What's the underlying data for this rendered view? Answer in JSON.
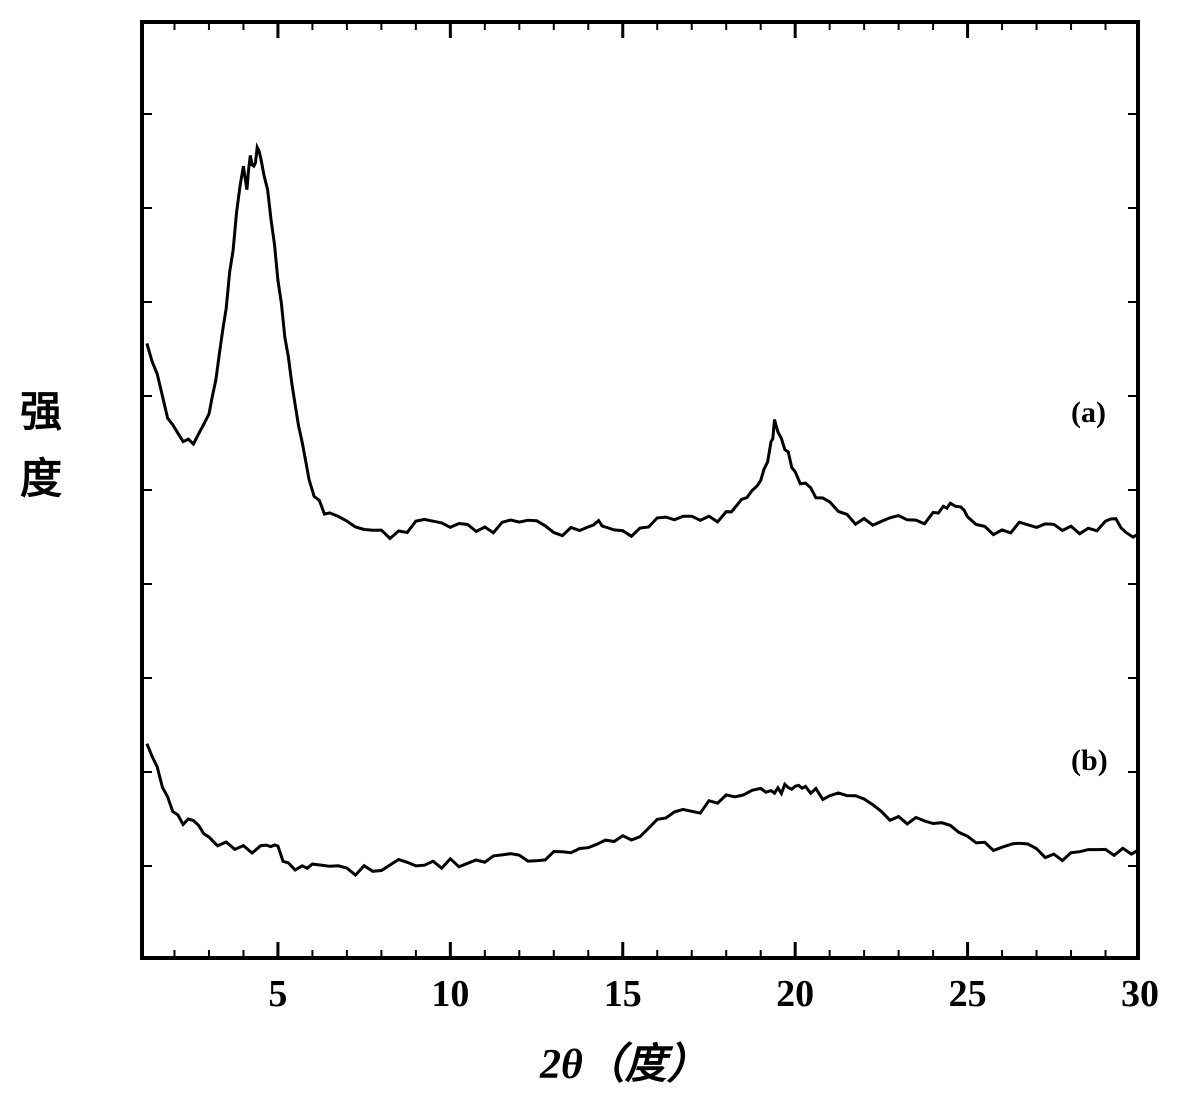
{
  "chart": {
    "type": "line",
    "xlabel": "2θ（度）",
    "ylabel_char1": "强",
    "ylabel_char2": "度",
    "xlim": [
      1,
      30
    ],
    "ylim": [
      0,
      100
    ],
    "xtick_major": [
      5,
      10,
      15,
      20,
      25,
      30
    ],
    "xtick_minor_count": 4,
    "ytick_major_count": 10,
    "background_color": "#ffffff",
    "axis_color": "#000000",
    "line_color": "#000000",
    "line_width": 3,
    "axis_width": 4,
    "label_fontsize": 42,
    "tick_fontsize": 38,
    "series_label_fontsize": 30,
    "series": [
      {
        "label": "(a)",
        "label_x": 28,
        "label_y": 60,
        "data": [
          [
            1.2,
            66
          ],
          [
            1.5,
            62
          ],
          [
            1.8,
            58
          ],
          [
            2.1,
            56
          ],
          [
            2.4,
            55.5
          ],
          [
            2.7,
            56
          ],
          [
            3.0,
            58
          ],
          [
            3.2,
            62
          ],
          [
            3.4,
            68
          ],
          [
            3.6,
            74
          ],
          [
            3.8,
            80
          ],
          [
            4.0,
            85
          ],
          [
            4.1,
            83
          ],
          [
            4.2,
            86
          ],
          [
            4.3,
            85
          ],
          [
            4.4,
            86.5
          ],
          [
            4.5,
            85
          ],
          [
            4.7,
            82
          ],
          [
            4.9,
            76
          ],
          [
            5.1,
            70
          ],
          [
            5.3,
            64
          ],
          [
            5.5,
            59
          ],
          [
            5.7,
            55
          ],
          [
            5.9,
            52
          ],
          [
            6.2,
            50
          ],
          [
            6.5,
            48.5
          ],
          [
            7.0,
            47.5
          ],
          [
            7.5,
            47
          ],
          [
            8.0,
            46.8
          ],
          [
            8.5,
            46.5
          ],
          [
            9.0,
            46.3
          ],
          [
            9.5,
            46.5
          ],
          [
            10.0,
            46.2
          ],
          [
            10.5,
            46.4
          ],
          [
            11.0,
            46.3
          ],
          [
            11.5,
            46.5
          ],
          [
            12.0,
            46.2
          ],
          [
            12.5,
            46.4
          ],
          [
            13.0,
            46.3
          ],
          [
            13.5,
            46.6
          ],
          [
            14.0,
            46.8
          ],
          [
            14.3,
            47.2
          ],
          [
            14.5,
            46.9
          ],
          [
            15.0,
            46.7
          ],
          [
            15.5,
            46.6
          ],
          [
            16.0,
            46.8
          ],
          [
            16.5,
            47.0
          ],
          [
            17.0,
            47.2
          ],
          [
            17.5,
            47.5
          ],
          [
            18.0,
            48
          ],
          [
            18.3,
            48.5
          ],
          [
            18.6,
            49.5
          ],
          [
            18.9,
            51
          ],
          [
            19.1,
            53
          ],
          [
            19.3,
            56
          ],
          [
            19.4,
            58
          ],
          [
            19.5,
            57
          ],
          [
            19.6,
            56.5
          ],
          [
            19.8,
            55
          ],
          [
            20.0,
            53
          ],
          [
            20.3,
            51
          ],
          [
            20.6,
            49.5
          ],
          [
            21.0,
            48.5
          ],
          [
            21.5,
            47.8
          ],
          [
            22.0,
            47.3
          ],
          [
            22.5,
            47
          ],
          [
            23.0,
            47.2
          ],
          [
            23.5,
            47.8
          ],
          [
            24.0,
            48.5
          ],
          [
            24.3,
            49.2
          ],
          [
            24.5,
            49.5
          ],
          [
            24.8,
            49
          ],
          [
            25.0,
            48.2
          ],
          [
            25.5,
            47.3
          ],
          [
            26.0,
            46.8
          ],
          [
            26.5,
            46.5
          ],
          [
            27.0,
            46.3
          ],
          [
            27.5,
            46.2
          ],
          [
            28.0,
            46.4
          ],
          [
            28.5,
            46.3
          ],
          [
            29.0,
            46.5
          ],
          [
            29.3,
            47
          ],
          [
            29.6,
            46.6
          ],
          [
            30.0,
            46.4
          ]
        ]
      },
      {
        "label": "(b)",
        "label_x": 28,
        "label_y": 23,
        "data": [
          [
            1.2,
            24
          ],
          [
            1.5,
            21
          ],
          [
            1.8,
            18.5
          ],
          [
            2.1,
            16.5
          ],
          [
            2.4,
            15
          ],
          [
            2.7,
            14
          ],
          [
            3.0,
            13.2
          ],
          [
            3.5,
            12.5
          ],
          [
            4.0,
            12
          ],
          [
            4.5,
            11.8
          ],
          [
            4.8,
            12.3
          ],
          [
            5.0,
            12
          ],
          [
            5.3,
            11.5
          ],
          [
            5.7,
            11.2
          ],
          [
            6.0,
            11
          ],
          [
            6.5,
            10.8
          ],
          [
            7.0,
            10.6
          ],
          [
            7.5,
            10.5
          ],
          [
            8.0,
            10.4
          ],
          [
            8.5,
            10.3
          ],
          [
            9.0,
            10.2
          ],
          [
            9.5,
            10.3
          ],
          [
            10.0,
            10.4
          ],
          [
            10.5,
            10.6
          ],
          [
            11.0,
            10.8
          ],
          [
            11.5,
            11
          ],
          [
            12.0,
            11.3
          ],
          [
            12.5,
            11.6
          ],
          [
            13.0,
            12
          ],
          [
            13.5,
            12.4
          ],
          [
            14.0,
            12.8
          ],
          [
            14.5,
            13.3
          ],
          [
            15.0,
            13.8
          ],
          [
            15.5,
            14.3
          ],
          [
            16.0,
            14.9
          ],
          [
            16.5,
            15.5
          ],
          [
            17.0,
            16.1
          ],
          [
            17.5,
            16.7
          ],
          [
            18.0,
            17.3
          ],
          [
            18.5,
            17.8
          ],
          [
            19.0,
            18.3
          ],
          [
            19.3,
            18.6
          ],
          [
            19.5,
            18.9
          ],
          [
            19.7,
            19.2
          ],
          [
            19.9,
            19.3
          ],
          [
            20.1,
            19.2
          ],
          [
            20.3,
            19
          ],
          [
            20.6,
            18.7
          ],
          [
            21.0,
            18.2
          ],
          [
            21.5,
            17.5
          ],
          [
            22.0,
            16.8
          ],
          [
            22.5,
            16.2
          ],
          [
            23.0,
            15.6
          ],
          [
            23.5,
            15
          ],
          [
            24.0,
            14.5
          ],
          [
            24.5,
            14
          ],
          [
            25.0,
            13.6
          ],
          [
            25.5,
            13.3
          ],
          [
            26.0,
            13
          ],
          [
            26.3,
            13.3
          ],
          [
            26.5,
            12.9
          ],
          [
            27.0,
            12.6
          ],
          [
            27.5,
            12.4
          ],
          [
            28.0,
            12.2
          ],
          [
            28.5,
            12
          ],
          [
            29.0,
            11.8
          ],
          [
            29.5,
            11.7
          ],
          [
            30.0,
            11.6
          ]
        ]
      }
    ]
  }
}
